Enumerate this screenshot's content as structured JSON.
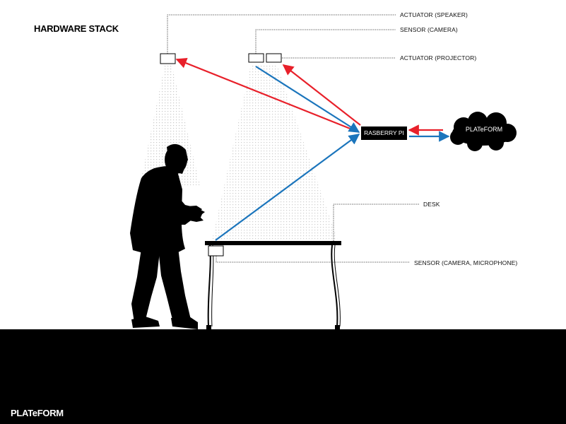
{
  "title": "HARDWARE STACK",
  "brand": "PLATeFORM",
  "labels": {
    "speaker": "ACTUATOR (SPEAKER)",
    "camera": "SENSOR (CAMERA)",
    "projector": "ACTUATOR (PROJECTOR)",
    "desk": "DESK",
    "desk_sensor": "SENSOR (CAMERA, MICROPHONE)"
  },
  "nodes": {
    "pi": "RASBERRY PI",
    "cloud": "PLATeFORM"
  },
  "colors": {
    "actuator_arrow": "#e8202a",
    "sensor_arrow": "#1b75bc",
    "ground": "#000000",
    "text": "#111111"
  }
}
